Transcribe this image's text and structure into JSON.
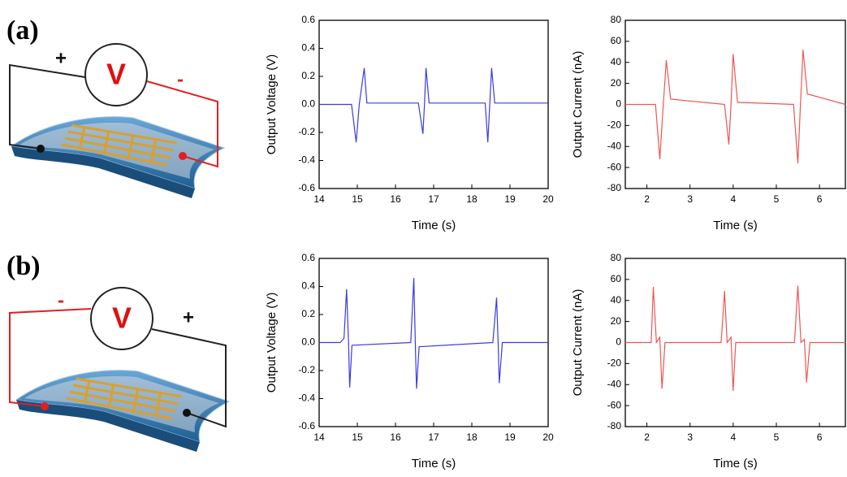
{
  "panels": [
    {
      "label": "(a)",
      "meter": "V",
      "left_sign": "+",
      "right_sign": "-"
    },
    {
      "label": "(b)",
      "meter": "V",
      "left_sign": "-",
      "right_sign": "+"
    }
  ],
  "chart_data": [
    {
      "type": "line",
      "xlabel": "Time (s)",
      "ylabel": "Output Voltage (V)",
      "color": "#3a3ae6",
      "xlim": [
        14,
        20
      ],
      "ylim": [
        -0.6,
        0.6
      ],
      "xticks": [
        14,
        15,
        16,
        17,
        18,
        19,
        20
      ],
      "yticks": [
        -0.6,
        -0.4,
        -0.2,
        {
          "value": 0,
          "label": "0.0"
        },
        0.2,
        0.4,
        0.6
      ],
      "x": [
        14,
        14.85,
        14.97,
        15.05,
        15.18,
        15.25,
        16.6,
        16.72,
        16.76,
        16.8,
        16.88,
        18.35,
        18.42,
        18.47,
        18.52,
        18.6,
        20
      ],
      "values": [
        0,
        0,
        -0.27,
        0,
        0.26,
        0.01,
        0.01,
        -0.21,
        0,
        0.26,
        0.01,
        0.01,
        -0.27,
        0,
        0.26,
        0.01,
        0.01
      ]
    },
    {
      "type": "line",
      "xlabel": "Time (s)",
      "ylabel": "Output Current (nA)",
      "color": "#f05555",
      "xlim": [
        1.5,
        6.6
      ],
      "ylim": [
        -80,
        80
      ],
      "xticks": [
        2,
        3,
        4,
        5,
        6
      ],
      "yticks": [
        -80,
        -60,
        -40,
        -20,
        0,
        20,
        40,
        60,
        80
      ],
      "x": [
        1.5,
        2.2,
        2.3,
        2.38,
        2.45,
        2.55,
        3.8,
        3.9,
        3.95,
        4.0,
        4.1,
        5.4,
        5.5,
        5.56,
        5.62,
        5.72,
        6.6
      ],
      "values": [
        0,
        0,
        -52,
        0,
        42,
        5,
        0,
        -38,
        0,
        48,
        2,
        0,
        -56,
        0,
        52,
        10,
        0
      ]
    },
    {
      "type": "line",
      "xlabel": "Time (s)",
      "ylabel": "Output Voltage (V)",
      "color": "#3a3ae6",
      "xlim": [
        14,
        20
      ],
      "ylim": [
        -0.6,
        0.6
      ],
      "xticks": [
        14,
        15,
        16,
        17,
        18,
        19,
        20
      ],
      "yticks": [
        -0.6,
        -0.4,
        -0.2,
        {
          "value": 0,
          "label": "0.0"
        },
        0.2,
        0.4,
        0.6
      ],
      "x": [
        14,
        14.55,
        14.65,
        14.72,
        14.77,
        14.8,
        14.86,
        16.4,
        16.48,
        16.52,
        16.55,
        16.62,
        18.55,
        18.65,
        18.69,
        18.72,
        18.8,
        20
      ],
      "values": [
        0,
        0,
        0.03,
        0.38,
        0,
        -0.32,
        -0.02,
        0,
        0.46,
        0,
        -0.33,
        -0.03,
        0,
        0.32,
        0,
        -0.29,
        0,
        0
      ]
    },
    {
      "type": "line",
      "xlabel": "Time (s)",
      "ylabel": "Output Current (nA)",
      "color": "#f05555",
      "xlim": [
        1.5,
        6.6
      ],
      "ylim": [
        -80,
        80
      ],
      "xticks": [
        2,
        3,
        4,
        5,
        6
      ],
      "yticks": [
        -80,
        -60,
        -40,
        -20,
        0,
        20,
        40,
        60,
        80
      ],
      "x": [
        1.5,
        2.1,
        2.15,
        2.22,
        2.3,
        2.35,
        2.42,
        3.72,
        3.8,
        3.86,
        3.95,
        4.0,
        4.06,
        5.42,
        5.5,
        5.57,
        5.65,
        5.7,
        5.78,
        6.6
      ],
      "values": [
        0,
        0,
        53,
        0,
        5,
        -44,
        0,
        0,
        49,
        0,
        5,
        -46,
        0,
        0,
        54,
        0,
        3,
        -38,
        0,
        0
      ]
    }
  ]
}
